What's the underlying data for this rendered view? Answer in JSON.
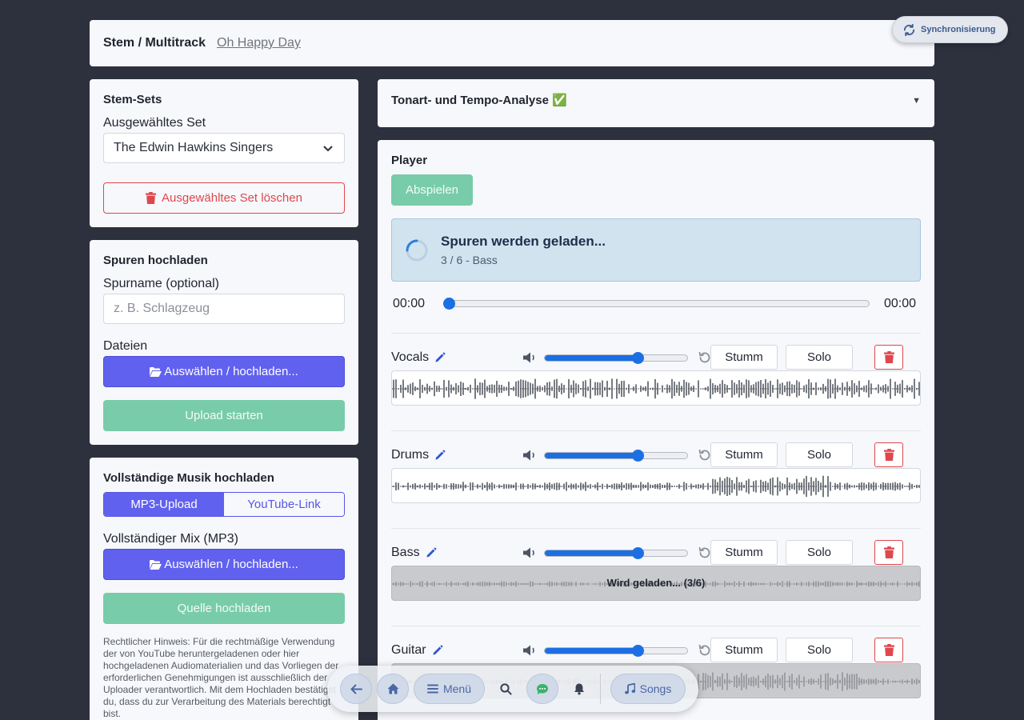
{
  "header": {
    "title": "Stem / Multitrack",
    "song": "Oh Happy Day"
  },
  "sync": {
    "label": "Synchronisierung"
  },
  "stem_sets": {
    "heading": "Stem-Sets",
    "selected_label": "Ausgewähltes Set",
    "selected_value": "The Edwin Hawkins Singers",
    "delete_label": "Ausgewähltes Set löschen"
  },
  "upload_tracks": {
    "heading": "Spuren hochladen",
    "name_label": "Spurname (optional)",
    "name_placeholder": "z. B. Schlagzeug",
    "files_label": "Dateien",
    "choose_label": "Auswählen / hochladen...",
    "start_label": "Upload starten"
  },
  "full_mix": {
    "heading": "Vollständige Musik hochladen",
    "tabs": [
      {
        "label": "MP3-Upload"
      },
      {
        "label": "YouTube-Link"
      }
    ],
    "mix_label": "Vollständiger Mix (MP3)",
    "choose_label": "Auswählen / hochladen...",
    "source_label": "Quelle hochladen",
    "legal": "Rechtlicher Hinweis: Für die rechtmäßige Verwendung der von YouTube heruntergeladenen oder hier hochgeladenen Audiomaterialien und das Vorliegen der erforderlichen Genehmigungen ist ausschließlich der Uploader verantwortlich. Mit dem Hochladen bestätigst du, dass du zur Verarbeitung des Materials berechtigt bist."
  },
  "analysis": {
    "title": "Tonart- und Tempo-Analyse ✅"
  },
  "player": {
    "heading": "Player",
    "play_label": "Abspielen",
    "loading_title": "Spuren werden geladen...",
    "loading_sub": "3 / 6 - Bass",
    "time_current": "00:00",
    "time_total": "00:00",
    "mute_label": "Stumm",
    "solo_label": "Solo",
    "tracks": [
      {
        "name": "Vocals",
        "volume": 0.65,
        "state": "ready",
        "message": ""
      },
      {
        "name": "Drums",
        "volume": 0.65,
        "state": "ready",
        "message": ""
      },
      {
        "name": "Bass",
        "volume": 0.65,
        "state": "loading",
        "message": "Wird geladen... (3/6)"
      },
      {
        "name": "Guitar",
        "volume": 0.65,
        "state": "loading",
        "message": "Wird geladen..."
      }
    ]
  },
  "nav": {
    "menu_label": "Menü",
    "songs_label": "Songs"
  },
  "colors": {
    "accent": "#6161ef",
    "success": "#78cca9",
    "danger": "#e0474c",
    "slider": "#1c6fe3"
  }
}
